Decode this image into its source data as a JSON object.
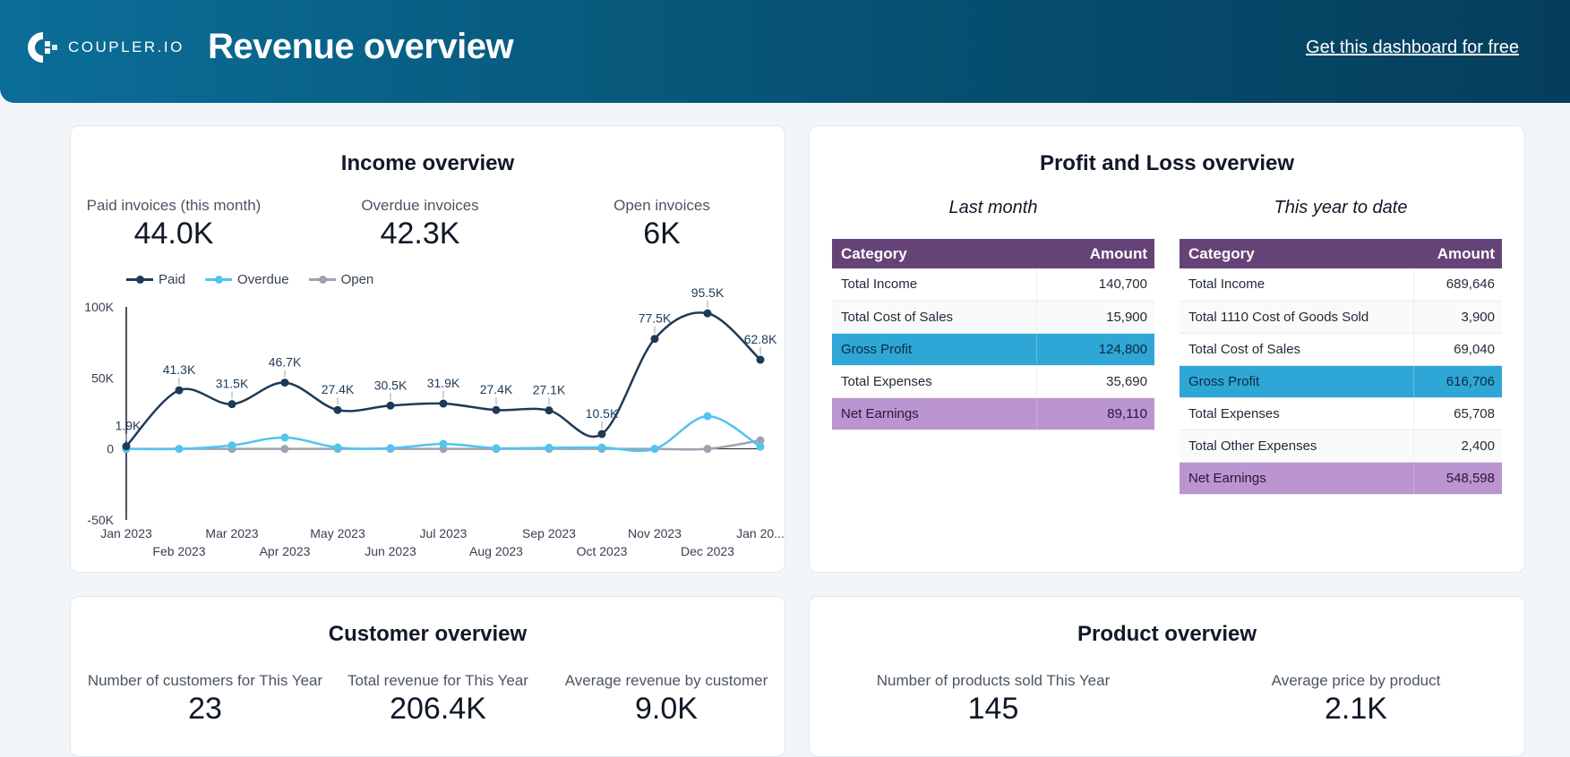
{
  "header": {
    "logo_text": "COUPLER.IO",
    "title": "Revenue overview",
    "cta": "Get this dashboard for free"
  },
  "income": {
    "title": "Income overview",
    "kpis": [
      {
        "label": "Paid invoices (this month)",
        "value": "44.0K"
      },
      {
        "label": "Overdue invoices",
        "value": "42.3K"
      },
      {
        "label": "Open invoices",
        "value": "6K"
      }
    ],
    "legend": [
      {
        "name": "Paid",
        "color": "#1e3a56"
      },
      {
        "name": "Overdue",
        "color": "#52c4ee"
      },
      {
        "name": "Open",
        "color": "#9ca3af"
      }
    ]
  },
  "chart_data": {
    "type": "line",
    "title": "",
    "xlabel": "",
    "ylabel": "",
    "ylim": [
      -50000,
      100000
    ],
    "y_ticks": [
      "100K",
      "50K",
      "0",
      "-50K"
    ],
    "x": [
      "Jan 2023",
      "Feb 2023",
      "Mar 2023",
      "Apr 2023",
      "May 2023",
      "Jun 2023",
      "Jul 2023",
      "Aug 2023",
      "Sep 2023",
      "Oct 2023",
      "Nov 2023",
      "Dec 2023",
      "Jan 20..."
    ],
    "series": [
      {
        "name": "Paid",
        "color": "#1e3a56",
        "values": [
          1900,
          41300,
          31500,
          46700,
          27400,
          30500,
          31900,
          27400,
          27100,
          10500,
          77500,
          95500,
          62800
        ],
        "labels": [
          "1.9K",
          "41.3K",
          "31.5K",
          "46.7K",
          "27.4K",
          "30.5K",
          "31.9K",
          "27.4K",
          "27.1K",
          "10.5K",
          "77.5K",
          "95.5K",
          "62.8K"
        ]
      },
      {
        "name": "Overdue",
        "color": "#52c4ee",
        "values": [
          0,
          0,
          2500,
          8000,
          1000,
          500,
          3500,
          500,
          800,
          1000,
          0,
          23000,
          1500
        ]
      },
      {
        "name": "Open",
        "color": "#9ca3af",
        "values": [
          0,
          0,
          0,
          0,
          0,
          0,
          0,
          0,
          0,
          0,
          0,
          0,
          6000
        ]
      }
    ]
  },
  "pl": {
    "title": "Profit and Loss overview",
    "last_month": {
      "subtitle": "Last month",
      "header": {
        "category": "Category",
        "amount": "Amount"
      },
      "rows": [
        {
          "category": "Total Income",
          "amount": "140,700"
        },
        {
          "category": "Total Cost of Sales",
          "amount": "15,900"
        },
        {
          "category": "Gross Profit",
          "amount": "124,800"
        },
        {
          "category": "Total Expenses",
          "amount": "35,690"
        },
        {
          "category": "Net Earnings",
          "amount": "89,110"
        }
      ]
    },
    "ytd": {
      "subtitle": "This year to date",
      "header": {
        "category": "Category",
        "amount": "Amount"
      },
      "rows": [
        {
          "category": "Total Income",
          "amount": "689,646"
        },
        {
          "category": "Total 1110 Cost of Goods Sold",
          "amount": "3,900"
        },
        {
          "category": "Total Cost of Sales",
          "amount": "69,040"
        },
        {
          "category": "Gross Profit",
          "amount": "616,706"
        },
        {
          "category": "Total Expenses",
          "amount": "65,708"
        },
        {
          "category": "Total Other Expenses",
          "amount": "2,400"
        },
        {
          "category": "Net Earnings",
          "amount": "548,598"
        }
      ]
    }
  },
  "customer": {
    "title": "Customer overview",
    "kpis": [
      {
        "label": "Number of customers for This Year",
        "value": "23"
      },
      {
        "label": "Total revenue for This Year",
        "value": "206.4K"
      },
      {
        "label": "Average revenue by customer",
        "value": "9.0K"
      }
    ]
  },
  "product": {
    "title": "Product overview",
    "kpis": [
      {
        "label": "Number of products sold This Year",
        "value": "145"
      },
      {
        "label": "Average price by product",
        "value": "2.1K"
      }
    ]
  }
}
